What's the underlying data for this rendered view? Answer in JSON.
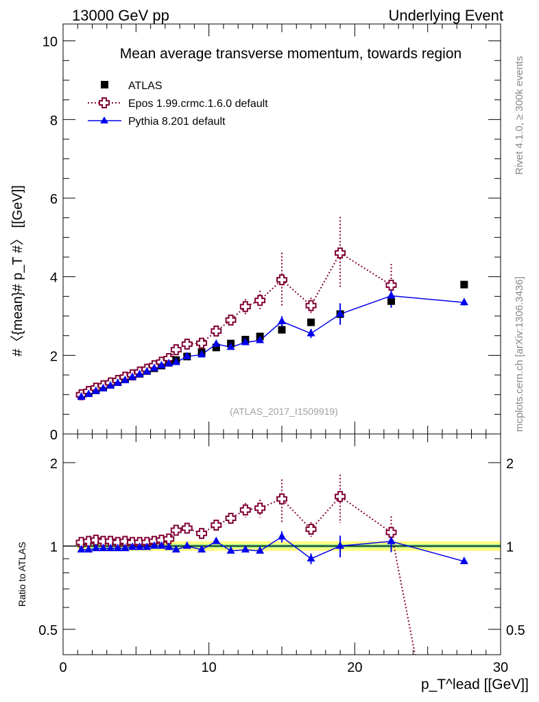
{
  "header": {
    "left": "13000 GeV pp",
    "right": "Underlying Event"
  },
  "side_labels": {
    "rivet": "Rivet 4.1.0, ≥ 300k events",
    "mcplots": "mcplots.cern.ch [arXiv:1306.3436]"
  },
  "chart_data": [
    {
      "type": "scatter",
      "title": "Mean average transverse momentum, towards region",
      "ylabel": "#〈{mean}# p_T #〉 [[GeV]]",
      "xlabel": "p_T^lead [[GeV]]",
      "watermark": "(ATLAS_2017_I1509919)",
      "xlim": [
        0,
        30
      ],
      "ylim": [
        0,
        10.43
      ],
      "yticks": [
        "0",
        "2",
        "4",
        "6",
        "8",
        "10"
      ],
      "x": [
        1.25,
        1.75,
        2.25,
        2.75,
        3.25,
        3.75,
        4.25,
        4.75,
        5.25,
        5.75,
        6.25,
        6.75,
        7.25,
        7.75,
        8.5,
        9.5,
        10.5,
        11.5,
        12.5,
        13.5,
        15,
        17,
        19,
        22.5,
        27.5
      ],
      "legend": [
        "ATLAS",
        "Epos 1.99.crmc.1.6.0 default",
        "Pythia 8.201 default"
      ],
      "series": [
        {
          "name": "ATLAS",
          "color": "#000000",
          "values": [
            0.97,
            1.04,
            1.11,
            1.18,
            1.25,
            1.32,
            1.39,
            1.46,
            1.53,
            1.6,
            1.67,
            1.74,
            1.81,
            1.88,
            1.97,
            2.08,
            2.2,
            2.3,
            2.4,
            2.48,
            2.65,
            2.84,
            3.05,
            3.38,
            3.8
          ]
        },
        {
          "name": "Epos 1.99.crmc.1.6.0 default",
          "color": "#800033",
          "ratio": [
            1.03,
            1.04,
            1.05,
            1.04,
            1.04,
            1.03,
            1.04,
            1.03,
            1.03,
            1.03,
            1.04,
            1.05,
            1.06,
            1.14,
            1.16,
            1.11,
            1.19,
            1.26,
            1.35,
            1.37,
            1.48,
            1.15,
            1.51,
            1.12,
            0.05
          ],
          "err_ratio": [
            0.01,
            0.01,
            0.01,
            0.01,
            0.01,
            0.01,
            0.01,
            0.01,
            0.01,
            0.01,
            0.01,
            0.01,
            0.01,
            0.02,
            0.02,
            0.03,
            0.04,
            0.05,
            0.08,
            0.1,
            0.26,
            0.07,
            0.3,
            0.16,
            0
          ]
        },
        {
          "name": "Pythia 8.201 default",
          "color": "#0000ee",
          "ratio": [
            0.97,
            0.97,
            0.98,
            0.98,
            0.98,
            0.98,
            0.98,
            0.99,
            0.99,
            0.99,
            1.0,
            1.0,
            0.99,
            0.97,
            1.0,
            0.97,
            1.04,
            0.96,
            0.97,
            0.96,
            1.08,
            0.9,
            1.0,
            1.04,
            0.88
          ],
          "err_ratio": [
            0,
            0,
            0,
            0,
            0,
            0,
            0,
            0,
            0,
            0,
            0,
            0,
            0,
            0,
            0,
            0,
            0.01,
            0.01,
            0.01,
            0.02,
            0.05,
            0.04,
            0.09,
            0.09,
            0.02
          ]
        }
      ]
    },
    {
      "type": "scatter",
      "ylabel": "Ratio to ATLAS",
      "ylim": [
        0.405,
        2.54
      ],
      "yscale": "log",
      "yticks": [
        "0.5",
        "1",
        "2"
      ],
      "xticks": [
        "0",
        "10",
        "20",
        "30"
      ]
    }
  ]
}
